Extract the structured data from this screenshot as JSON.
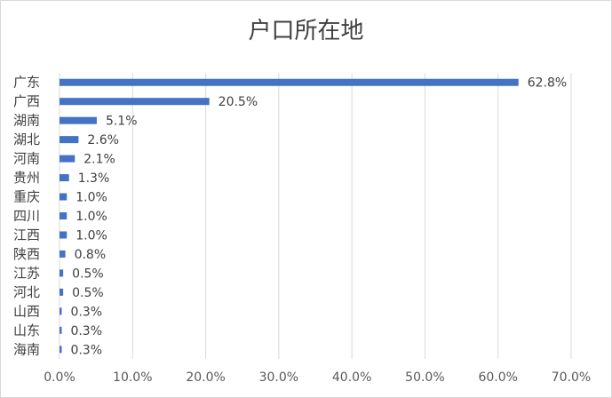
{
  "chart_data": {
    "type": "bar",
    "orientation": "horizontal",
    "title": "户口所在地",
    "categories": [
      "广东",
      "广西",
      "湖南",
      "湖北",
      "河南",
      "贵州",
      "重庆",
      "四川",
      "江西",
      "陕西",
      "江苏",
      "河北",
      "山西",
      "山东",
      "海南"
    ],
    "values": [
      62.8,
      20.5,
      5.1,
      2.6,
      2.1,
      1.3,
      1.0,
      1.0,
      1.0,
      0.8,
      0.5,
      0.5,
      0.3,
      0.3,
      0.3
    ],
    "data_labels": [
      "62.8%",
      "20.5%",
      "5.1%",
      "2.6%",
      "2.1%",
      "1.3%",
      "1.0%",
      "1.0%",
      "1.0%",
      "0.8%",
      "0.5%",
      "0.5%",
      "0.3%",
      "0.3%",
      "0.3%"
    ],
    "xlim": [
      0,
      70
    ],
    "x_ticks": [
      "0.0%",
      "10.0%",
      "20.0%",
      "30.0%",
      "40.0%",
      "50.0%",
      "60.0%",
      "70.0%"
    ],
    "grid": true,
    "bar_color": "#4472c4",
    "grid_color": "#d9d9d9"
  }
}
